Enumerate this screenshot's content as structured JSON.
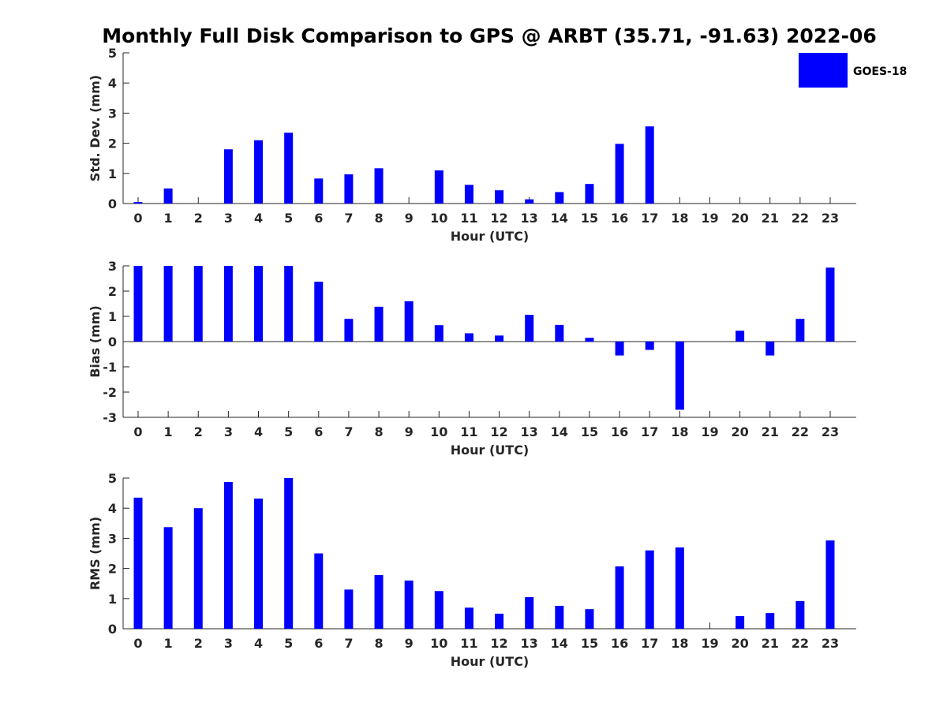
{
  "chart_data": {
    "type": "bar",
    "title": "Monthly Full Disk Comparison to GPS @ ARBT (35.71, -91.63) 2022-06",
    "legend": {
      "label": "GOES-18",
      "color": "#0000ff",
      "position": "top-right"
    },
    "subplots": [
      {
        "name": "std-dev",
        "xlabel": "Hour (UTC)",
        "ylabel": "Std. Dev. (mm)",
        "ylim": [
          0,
          5
        ],
        "yticks": [
          "0",
          "1",
          "2",
          "3",
          "4",
          "5"
        ],
        "categories": [
          "0",
          "1",
          "2",
          "3",
          "4",
          "5",
          "6",
          "7",
          "8",
          "9",
          "10",
          "11",
          "12",
          "13",
          "14",
          "15",
          "16",
          "17",
          "18",
          "19",
          "20",
          "21",
          "22",
          "23"
        ],
        "values": [
          0.05,
          0.5,
          0,
          1.8,
          2.1,
          2.35,
          0.83,
          0.97,
          1.17,
          0,
          1.1,
          0.62,
          0.44,
          0.14,
          0.38,
          0.65,
          1.98,
          2.56,
          0,
          0,
          0,
          0,
          0,
          0
        ]
      },
      {
        "name": "bias",
        "xlabel": "Hour (UTC)",
        "ylabel": "Bias (mm)",
        "ylim": [
          -3,
          3
        ],
        "yticks": [
          "-3",
          "-2",
          "-1",
          "0",
          "1",
          "2",
          "3"
        ],
        "categories": [
          "0",
          "1",
          "2",
          "3",
          "4",
          "5",
          "6",
          "7",
          "8",
          "9",
          "10",
          "11",
          "12",
          "13",
          "14",
          "15",
          "16",
          "17",
          "18",
          "19",
          "20",
          "21",
          "22",
          "23"
        ],
        "values": [
          3,
          3,
          3,
          3,
          3,
          3,
          2.37,
          0.9,
          1.38,
          1.6,
          0.65,
          0.33,
          0.24,
          1.06,
          0.66,
          0.15,
          -0.55,
          -0.33,
          -2.7,
          0,
          0.43,
          -0.55,
          0.9,
          2.93
        ]
      },
      {
        "name": "rms",
        "xlabel": "Hour (UTC)",
        "ylabel": "RMS (mm)",
        "ylim": [
          0,
          5
        ],
        "yticks": [
          "0",
          "1",
          "2",
          "3",
          "4",
          "5"
        ],
        "categories": [
          "0",
          "1",
          "2",
          "3",
          "4",
          "5",
          "6",
          "7",
          "8",
          "9",
          "10",
          "11",
          "12",
          "13",
          "14",
          "15",
          "16",
          "17",
          "18",
          "19",
          "20",
          "21",
          "22",
          "23"
        ],
        "values": [
          4.35,
          3.37,
          4.0,
          4.87,
          4.32,
          5.0,
          2.5,
          1.3,
          1.78,
          1.6,
          1.25,
          0.7,
          0.5,
          1.05,
          0.76,
          0.65,
          2.07,
          2.6,
          2.7,
          0,
          0.42,
          0.52,
          0.92,
          2.93
        ]
      }
    ]
  }
}
